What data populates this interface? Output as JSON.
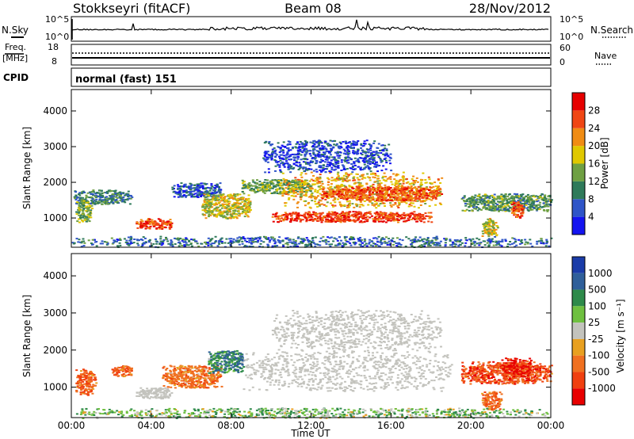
{
  "header": {
    "station": "Stokkseyri (fitACF)",
    "beam": "Beam 08",
    "date": "28/Nov/2012"
  },
  "status_panels": {
    "nsky": {
      "label": "N.Sky",
      "right_label": "N.Search",
      "left_ticks": [
        "10^5",
        "10^0"
      ],
      "right_ticks": [
        "10^5",
        "10^0"
      ]
    },
    "freq": {
      "label_line1": "Freq.",
      "label_line2": "[MHz]",
      "right_label": "Nave",
      "left_ticks": [
        "18",
        "8"
      ],
      "right_ticks": [
        "60",
        "0"
      ]
    },
    "cpid": {
      "label": "CPID",
      "text": "normal (fast) 151"
    }
  },
  "colors": {
    "power": [
      "#1414f0",
      "#2f55c8",
      "#2f7a5a",
      "#6fa043",
      "#e0c800",
      "#f08c14",
      "#f04614",
      "#e60000"
    ],
    "velocity": [
      "#1a3ca8",
      "#2f5f9a",
      "#2e8a4a",
      "#6fc040",
      "#c3c3bd",
      "#e8a020",
      "#f07020",
      "#f04010",
      "#e80000"
    ]
  },
  "chart_data": [
    {
      "type": "heatmap",
      "panel": "power",
      "ylabel": "Slant Range [km]",
      "xlabel": "Time UT",
      "xlim": [
        0,
        24
      ],
      "ylim": [
        180,
        4600
      ],
      "x_ticks": [
        "00:00",
        "04:00",
        "08:00",
        "12:00",
        "16:00",
        "20:00",
        "00:00"
      ],
      "y_ticks": [
        1000,
        2000,
        3000,
        4000
      ],
      "colorbar": {
        "label": "Power [dB]",
        "ticks": [
          4,
          8,
          12,
          16,
          20,
          24,
          28
        ],
        "range": [
          0,
          32
        ]
      },
      "regions": [
        {
          "t": [
            0.1,
            3.0
          ],
          "r": [
            1400,
            1800
          ],
          "level": 10
        },
        {
          "t": [
            0.2,
            1.0
          ],
          "r": [
            900,
            1500
          ],
          "level": 14
        },
        {
          "t": [
            3.2,
            5.0
          ],
          "r": [
            700,
            1000
          ],
          "level": 27
        },
        {
          "t": [
            5.0,
            7.5
          ],
          "r": [
            1600,
            2000
          ],
          "level": 6
        },
        {
          "t": [
            6.5,
            9.0
          ],
          "r": [
            1000,
            1700
          ],
          "level": 17
        },
        {
          "t": [
            8.5,
            12.0
          ],
          "r": [
            1700,
            2100
          ],
          "level": 13
        },
        {
          "t": [
            10.0,
            18.0
          ],
          "r": [
            900,
            1200
          ],
          "level": 27
        },
        {
          "t": [
            10.5,
            18.5
          ],
          "r": [
            1300,
            2300
          ],
          "level": 20
        },
        {
          "t": [
            12.5,
            18.5
          ],
          "r": [
            1500,
            1900
          ],
          "level": 25
        },
        {
          "t": [
            9.5,
            16.0
          ],
          "r": [
            2300,
            3200
          ],
          "level": 5
        },
        {
          "t": [
            19.5,
            24.0
          ],
          "r": [
            1200,
            1700
          ],
          "level": 12
        },
        {
          "t": [
            20.5,
            21.3
          ],
          "r": [
            500,
            1000
          ],
          "level": 18
        },
        {
          "t": [
            22.0,
            22.6
          ],
          "r": [
            1000,
            1500
          ],
          "level": 27
        },
        {
          "t": [
            0.0,
            24.0
          ],
          "r": [
            200,
            500
          ],
          "level": 8
        }
      ]
    },
    {
      "type": "heatmap",
      "panel": "velocity",
      "ylabel": "Slant Range [km]",
      "xlabel": "Time UT",
      "xlim": [
        0,
        24
      ],
      "ylim": [
        180,
        4600
      ],
      "x_ticks": [
        "00:00",
        "04:00",
        "08:00",
        "12:00",
        "16:00",
        "20:00",
        "00:00"
      ],
      "y_ticks": [
        1000,
        2000,
        3000,
        4000
      ],
      "colorbar": {
        "label": "Velocity [m s⁻¹]",
        "ticks": [
          1000,
          500,
          100,
          25,
          -25,
          -100,
          -500,
          -1000
        ]
      },
      "regions": [
        {
          "t": [
            0.2,
            1.2
          ],
          "r": [
            800,
            1500
          ],
          "level": -500
        },
        {
          "t": [
            2.0,
            3.0
          ],
          "r": [
            1300,
            1600
          ],
          "level": -500
        },
        {
          "t": [
            3.2,
            5.0
          ],
          "r": [
            700,
            1000
          ],
          "level": 0
        },
        {
          "t": [
            4.5,
            7.5
          ],
          "r": [
            1000,
            1600
          ],
          "level": -300
        },
        {
          "t": [
            6.8,
            8.6
          ],
          "r": [
            1400,
            2000
          ],
          "level": 400
        },
        {
          "t": [
            8.5,
            19.0
          ],
          "r": [
            900,
            2000
          ],
          "level": 0
        },
        {
          "t": [
            10.0,
            18.5
          ],
          "r": [
            2000,
            3100
          ],
          "level": 0
        },
        {
          "t": [
            19.5,
            24.0
          ],
          "r": [
            1100,
            1700
          ],
          "level": -700
        },
        {
          "t": [
            20.5,
            21.5
          ],
          "r": [
            400,
            900
          ],
          "level": -400
        },
        {
          "t": [
            21.5,
            23.0
          ],
          "r": [
            1300,
            1800
          ],
          "level": -1000
        },
        {
          "t": [
            0.0,
            24.0
          ],
          "r": [
            180,
            450
          ],
          "level": 60
        }
      ]
    }
  ]
}
